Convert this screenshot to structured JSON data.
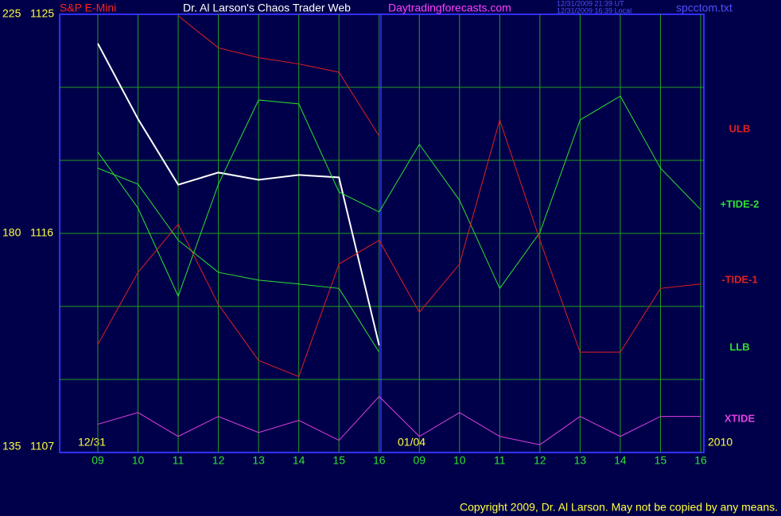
{
  "chart_data": {
    "type": "line",
    "title": "Dr. Al Larson's Chaos Trader Web",
    "instrument": "S&P E-Mini",
    "site": "Daytradingforecasts.com",
    "timestamps": [
      "12/31/2009 21:39 UT",
      "12/31/2009 16:39 Local"
    ],
    "file": "spcctom.txt",
    "copyright": "Copyright 2009, Dr. Al Larson. May not be copied by any means.",
    "date_labels": [
      "12/31",
      "01/04",
      "2010"
    ],
    "categories": [
      "09",
      "10",
      "11",
      "12",
      "13",
      "14",
      "15",
      "16",
      "09",
      "10",
      "11",
      "12",
      "13",
      "14",
      "15",
      "16"
    ],
    "ylim": [
      1107,
      1125
    ],
    "yticks": [
      1107,
      1116,
      1125
    ],
    "y2lim": [
      135,
      225
    ],
    "y2ticks": [
      135,
      180,
      225
    ],
    "grid": true,
    "series": [
      {
        "color": "#ffffff",
        "values": [
          1123.8,
          1120.7,
          1118.0,
          1118.5,
          1118.2,
          1118.4,
          1118.3,
          1111.4,
          null,
          null,
          null,
          null,
          null,
          null,
          null,
          null
        ]
      },
      {
        "name": "ULB",
        "color": "#e02020",
        "axis": "y2",
        "values": [
          null,
          null,
          224.7,
          218.1,
          216.1,
          214.8,
          213.1,
          200.0,
          null,
          null,
          null,
          null,
          null,
          null,
          null,
          null
        ]
      },
      {
        "name": "+TIDE-2",
        "color": "#30e030",
        "axis": "y2",
        "values": [
          196.7,
          185.2,
          167.1,
          190.1,
          207.4,
          206.6,
          188.5,
          184.4,
          198.3,
          186.8,
          168.7,
          180.2,
          203.3,
          208.2,
          193.4,
          184.9
        ]
      },
      {
        "name": "-TIDE-1",
        "color": "#e02020",
        "axis": "y2",
        "values": [
          157.2,
          172.0,
          181.9,
          165.4,
          153.9,
          150.6,
          173.7,
          178.6,
          163.8,
          173.7,
          203.3,
          178.6,
          155.6,
          155.6,
          168.7,
          169.6
        ]
      },
      {
        "name": "LLB",
        "color": "#30e030",
        "axis": "y2",
        "values": [
          193.4,
          190.1,
          178.6,
          172.0,
          170.4,
          169.6,
          168.7,
          155.6,
          null,
          null,
          null,
          null,
          null,
          null,
          null,
          null
        ]
      },
      {
        "name": "XTIDE",
        "color": "#e040e0",
        "axis": "y2",
        "values": [
          140.8,
          143.2,
          138.3,
          142.4,
          139.1,
          141.6,
          137.5,
          146.5,
          138.3,
          143.2,
          138.3,
          136.6,
          142.4,
          138.3,
          142.4,
          142.4
        ]
      }
    ]
  }
}
